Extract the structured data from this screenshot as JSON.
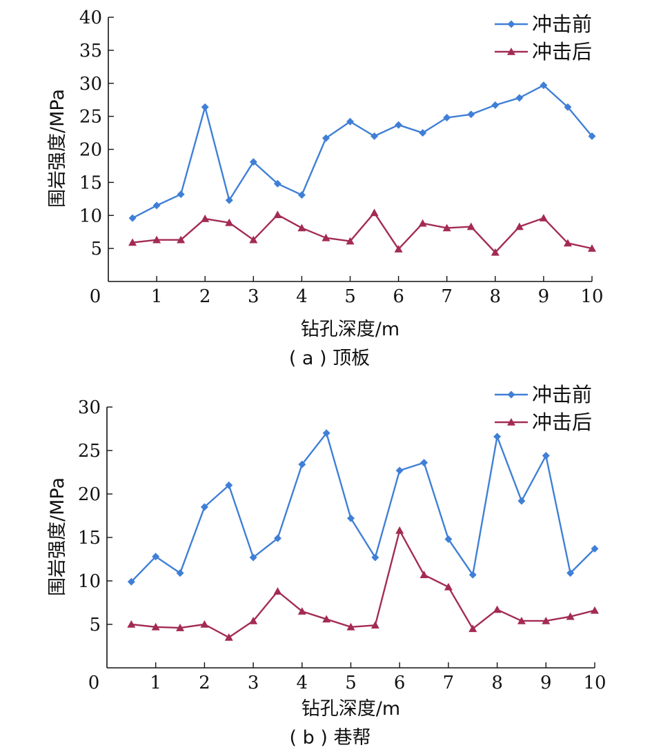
{
  "colors": {
    "series_before": "#3f7fd6",
    "series_after": "#a32b52",
    "axis": "#111111"
  },
  "chart_data": [
    {
      "type": "line",
      "caption": "( a ) 顶板",
      "xlabel": "钻孔深度/m",
      "ylabel": "围岩强度/MPa",
      "xlim": [
        0,
        10
      ],
      "ylim": [
        0,
        40
      ],
      "xticks": [
        "0",
        "1",
        "2",
        "3",
        "4",
        "5",
        "6",
        "7",
        "8",
        "9",
        "10"
      ],
      "yticks": [
        "5",
        "10",
        "15",
        "20",
        "25",
        "30",
        "35",
        "40"
      ],
      "legend_position": "top-right",
      "x": [
        0.5,
        1,
        1.5,
        2,
        2.5,
        3,
        3.5,
        4,
        4.5,
        5,
        5.5,
        6,
        6.5,
        7,
        7.5,
        8,
        8.5,
        9,
        9.5,
        10
      ],
      "series": [
        {
          "name": "冲击前",
          "marker": "diamond",
          "values": [
            9.6,
            11.5,
            13.2,
            26.4,
            12.3,
            18.1,
            14.8,
            13.1,
            21.7,
            24.2,
            22.0,
            23.7,
            22.5,
            24.8,
            25.3,
            26.7,
            27.8,
            29.7,
            26.4,
            22.0
          ]
        },
        {
          "name": "冲击后",
          "marker": "triangle",
          "values": [
            5.9,
            6.3,
            6.3,
            9.5,
            8.9,
            6.3,
            10.1,
            8.1,
            6.6,
            6.1,
            10.4,
            4.9,
            8.8,
            8.1,
            8.3,
            4.4,
            8.3,
            9.6,
            5.8,
            5.0
          ]
        }
      ]
    },
    {
      "type": "line",
      "caption": "( b ) 巷帮",
      "xlabel": "钻孔深度/m",
      "ylabel": "围岩强度/MPa",
      "xlim": [
        0,
        10
      ],
      "ylim": [
        0,
        30
      ],
      "xticks": [
        "0",
        "1",
        "2",
        "3",
        "4",
        "5",
        "6",
        "7",
        "8",
        "9",
        "10"
      ],
      "yticks": [
        "5",
        "10",
        "15",
        "20",
        "25",
        "30"
      ],
      "legend_position": "top-right",
      "x": [
        0.5,
        1,
        1.5,
        2,
        2.5,
        3,
        3.5,
        4,
        4.5,
        5,
        5.5,
        6,
        6.5,
        7,
        7.5,
        8,
        8.5,
        9,
        9.5,
        10
      ],
      "series": [
        {
          "name": "冲击前",
          "marker": "diamond",
          "values": [
            9.9,
            12.8,
            10.9,
            18.5,
            21.0,
            12.7,
            14.9,
            23.4,
            27.0,
            17.2,
            12.7,
            22.7,
            23.6,
            14.8,
            10.7,
            26.6,
            19.2,
            24.4,
            10.9,
            13.7
          ]
        },
        {
          "name": "冲击后",
          "marker": "triangle",
          "values": [
            5.0,
            4.7,
            4.6,
            5.0,
            3.5,
            5.4,
            8.8,
            6.5,
            5.6,
            4.7,
            4.9,
            15.8,
            10.7,
            9.3,
            4.5,
            6.7,
            5.4,
            5.4,
            5.9,
            6.6
          ]
        }
      ]
    }
  ]
}
